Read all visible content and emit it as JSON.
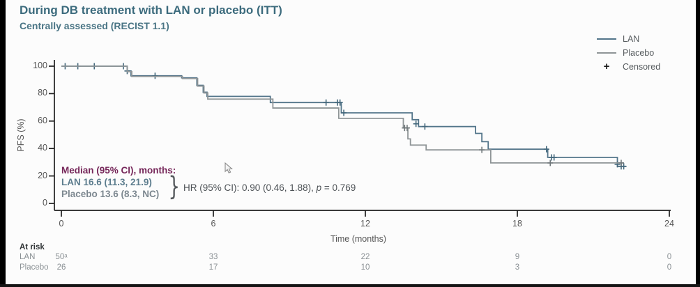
{
  "chart_data": {
    "type": "line",
    "subtype": "kaplan-meier-step",
    "title": "During DB treatment with LAN or placebo (ITT)",
    "subtitle": "Centrally assessed (RECIST 1.1)",
    "xlabel": "Time (months)",
    "ylabel": "PFS (%)",
    "xlim": [
      0,
      24
    ],
    "ylim": [
      0,
      100
    ],
    "x_ticks": [
      0,
      6,
      12,
      18,
      24
    ],
    "y_ticks": [
      0,
      20,
      40,
      60,
      80,
      100
    ],
    "grid": false,
    "legend_position": "top-right",
    "legend": [
      {
        "label": "LAN",
        "type": "line"
      },
      {
        "label": "Placebo",
        "type": "line"
      },
      {
        "label": "Censored",
        "type": "plus"
      }
    ],
    "axis_color": "#1f1f1f",
    "series": [
      {
        "name": "LAN",
        "color": "#53758a",
        "censor_color": "#44687c",
        "median_months": 16.6,
        "median_ci": "11.3, 21.9",
        "steps": [
          [
            0,
            100
          ],
          [
            2.6,
            96.5
          ],
          [
            2.75,
            93
          ],
          [
            4.75,
            91.5
          ],
          [
            5.35,
            86
          ],
          [
            5.6,
            81
          ],
          [
            5.75,
            78
          ],
          [
            8.25,
            73.5
          ],
          [
            11.05,
            66
          ],
          [
            13.85,
            61
          ],
          [
            14.1,
            56
          ],
          [
            16.35,
            51
          ],
          [
            16.6,
            45
          ],
          [
            16.85,
            39.5
          ],
          [
            19.2,
            33.5
          ],
          [
            21.95,
            27
          ],
          [
            22.3,
            27
          ]
        ],
        "censors": [
          [
            0.15,
            100
          ],
          [
            0.65,
            100
          ],
          [
            1.3,
            100
          ],
          [
            2.45,
            100
          ],
          [
            2.6,
            96.5
          ],
          [
            3.7,
            93
          ],
          [
            10.45,
            73.5
          ],
          [
            10.9,
            73.5
          ],
          [
            11.0,
            73.5
          ],
          [
            11.15,
            66
          ],
          [
            14.0,
            58
          ],
          [
            14.35,
            56
          ],
          [
            19.15,
            39.5
          ],
          [
            19.35,
            33.5
          ],
          [
            19.45,
            33.5
          ],
          [
            21.95,
            28.5
          ],
          [
            22.1,
            27
          ],
          [
            22.2,
            27
          ]
        ]
      },
      {
        "name": "Placebo",
        "color": "#8f9597",
        "censor_color": "#70787b",
        "median_months": 13.6,
        "median_ci": "8.3, NC",
        "steps": [
          [
            0,
            100
          ],
          [
            2.6,
            96
          ],
          [
            2.78,
            92.5
          ],
          [
            4.78,
            91
          ],
          [
            5.38,
            85.5
          ],
          [
            5.63,
            80.5
          ],
          [
            5.78,
            76
          ],
          [
            8.35,
            69.5
          ],
          [
            10.95,
            62
          ],
          [
            13.5,
            55
          ],
          [
            13.68,
            47
          ],
          [
            13.78,
            42.5
          ],
          [
            14.4,
            39
          ],
          [
            16.95,
            29.5
          ],
          [
            22.2,
            29.5
          ]
        ],
        "censors": [
          [
            13.55,
            55
          ],
          [
            13.65,
            55
          ],
          [
            16.6,
            39
          ],
          [
            19.3,
            29.5
          ],
          [
            22.1,
            29.5
          ]
        ]
      }
    ],
    "hazard_ratio": {
      "hr": "0.90",
      "ci": "0.46, 1.88",
      "p": "0.769"
    }
  },
  "annotation": {
    "heading": "Median (95% CI), months:",
    "lan": "LAN 16.6 (11.3, 21.9)",
    "placebo": "Placebo 13.6 (8.3, NC)",
    "brace": "}",
    "hr_prefix": "HR (95% CI): 0.90 (0.46, 1.88), ",
    "hr_p": "p",
    "hr_suffix": " = 0.769"
  },
  "at_risk": {
    "heading": "At risk",
    "time_points": [
      0,
      6,
      12,
      18,
      24
    ],
    "rows": [
      {
        "label": "LAN",
        "values": [
          "50ᵃ",
          "33",
          "22",
          "9",
          "0"
        ]
      },
      {
        "label": "Placebo",
        "values": [
          "26",
          "17",
          "10",
          "3",
          "0"
        ]
      }
    ]
  },
  "colors": {
    "title": "#3c6b7d",
    "median_heading": "#76275a",
    "lan": "#53758a",
    "placebo": "#8f9597",
    "censored_marker": "#1a1a1a"
  }
}
